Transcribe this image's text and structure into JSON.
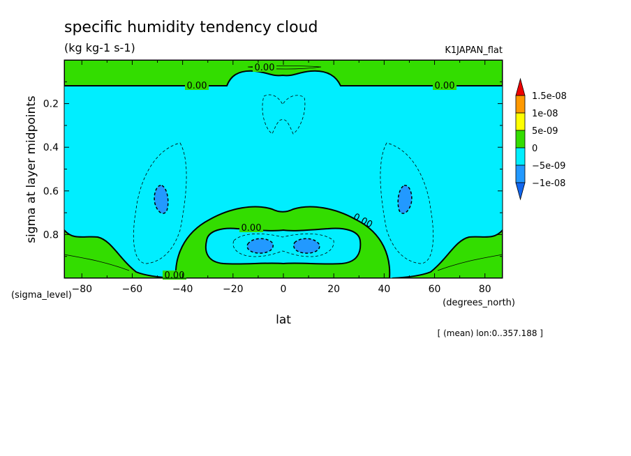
{
  "chart_data": {
    "type": "contour",
    "title": "specific humidity tendency cloud",
    "units": "(kg kg-1 s-1)",
    "dataset": "K1JAPAN_flat",
    "xlabel": "lat",
    "xunits": "(degrees_north)",
    "ylabel": "sigma at layer midpoints",
    "yunits": "(sigma_level)",
    "note": "[ (mean) lon:0..357.188 ]",
    "xlim": [
      -87,
      87
    ],
    "ylim": [
      1.0,
      0.0
    ],
    "y_reversed": true,
    "xticks": [
      -80,
      -60,
      -40,
      -20,
      0,
      20,
      40,
      60,
      80
    ],
    "yticks": [
      0.2,
      0.4,
      0.6,
      0.8
    ],
    "contour_labels": [
      "0.00",
      "0.00",
      "0.00",
      "0.00",
      "0.00",
      "0.00"
    ],
    "colorbar": {
      "levels": [
        "1.5e-08",
        "1e-08",
        "5e-09",
        "0",
        "-5e-09",
        "-1e-08"
      ],
      "colors": [
        "#ee0000",
        "#ff9900",
        "#ffff00",
        "#33dd00",
        "#00eeff",
        "#2299ff",
        "#1166ee"
      ]
    },
    "regions": [
      {
        "sign": "positive",
        "range": "0 to 5e-09",
        "description": "upper layer, sigma < ~0.12, all latitudes"
      },
      {
        "sign": "positive",
        "range": "0 to 5e-09",
        "description": "polar lower layers near surface"
      },
      {
        "sign": "positive",
        "range": "0 to 5e-09",
        "description": "tropical ring around sigma 0.75-0.98, lat -45 to 45"
      },
      {
        "sign": "negative",
        "range": "-5e-09 to 0",
        "description": "mid troposphere, most latitudes"
      },
      {
        "sign": "negative",
        "range": "-1e-08 to -5e-09",
        "description": "cores near lat ±50, sigma ~0.65"
      },
      {
        "sign": "negative",
        "range": "-1e-08 to -5e-09",
        "description": "cores near lat ±8, sigma ~0.85"
      }
    ]
  }
}
